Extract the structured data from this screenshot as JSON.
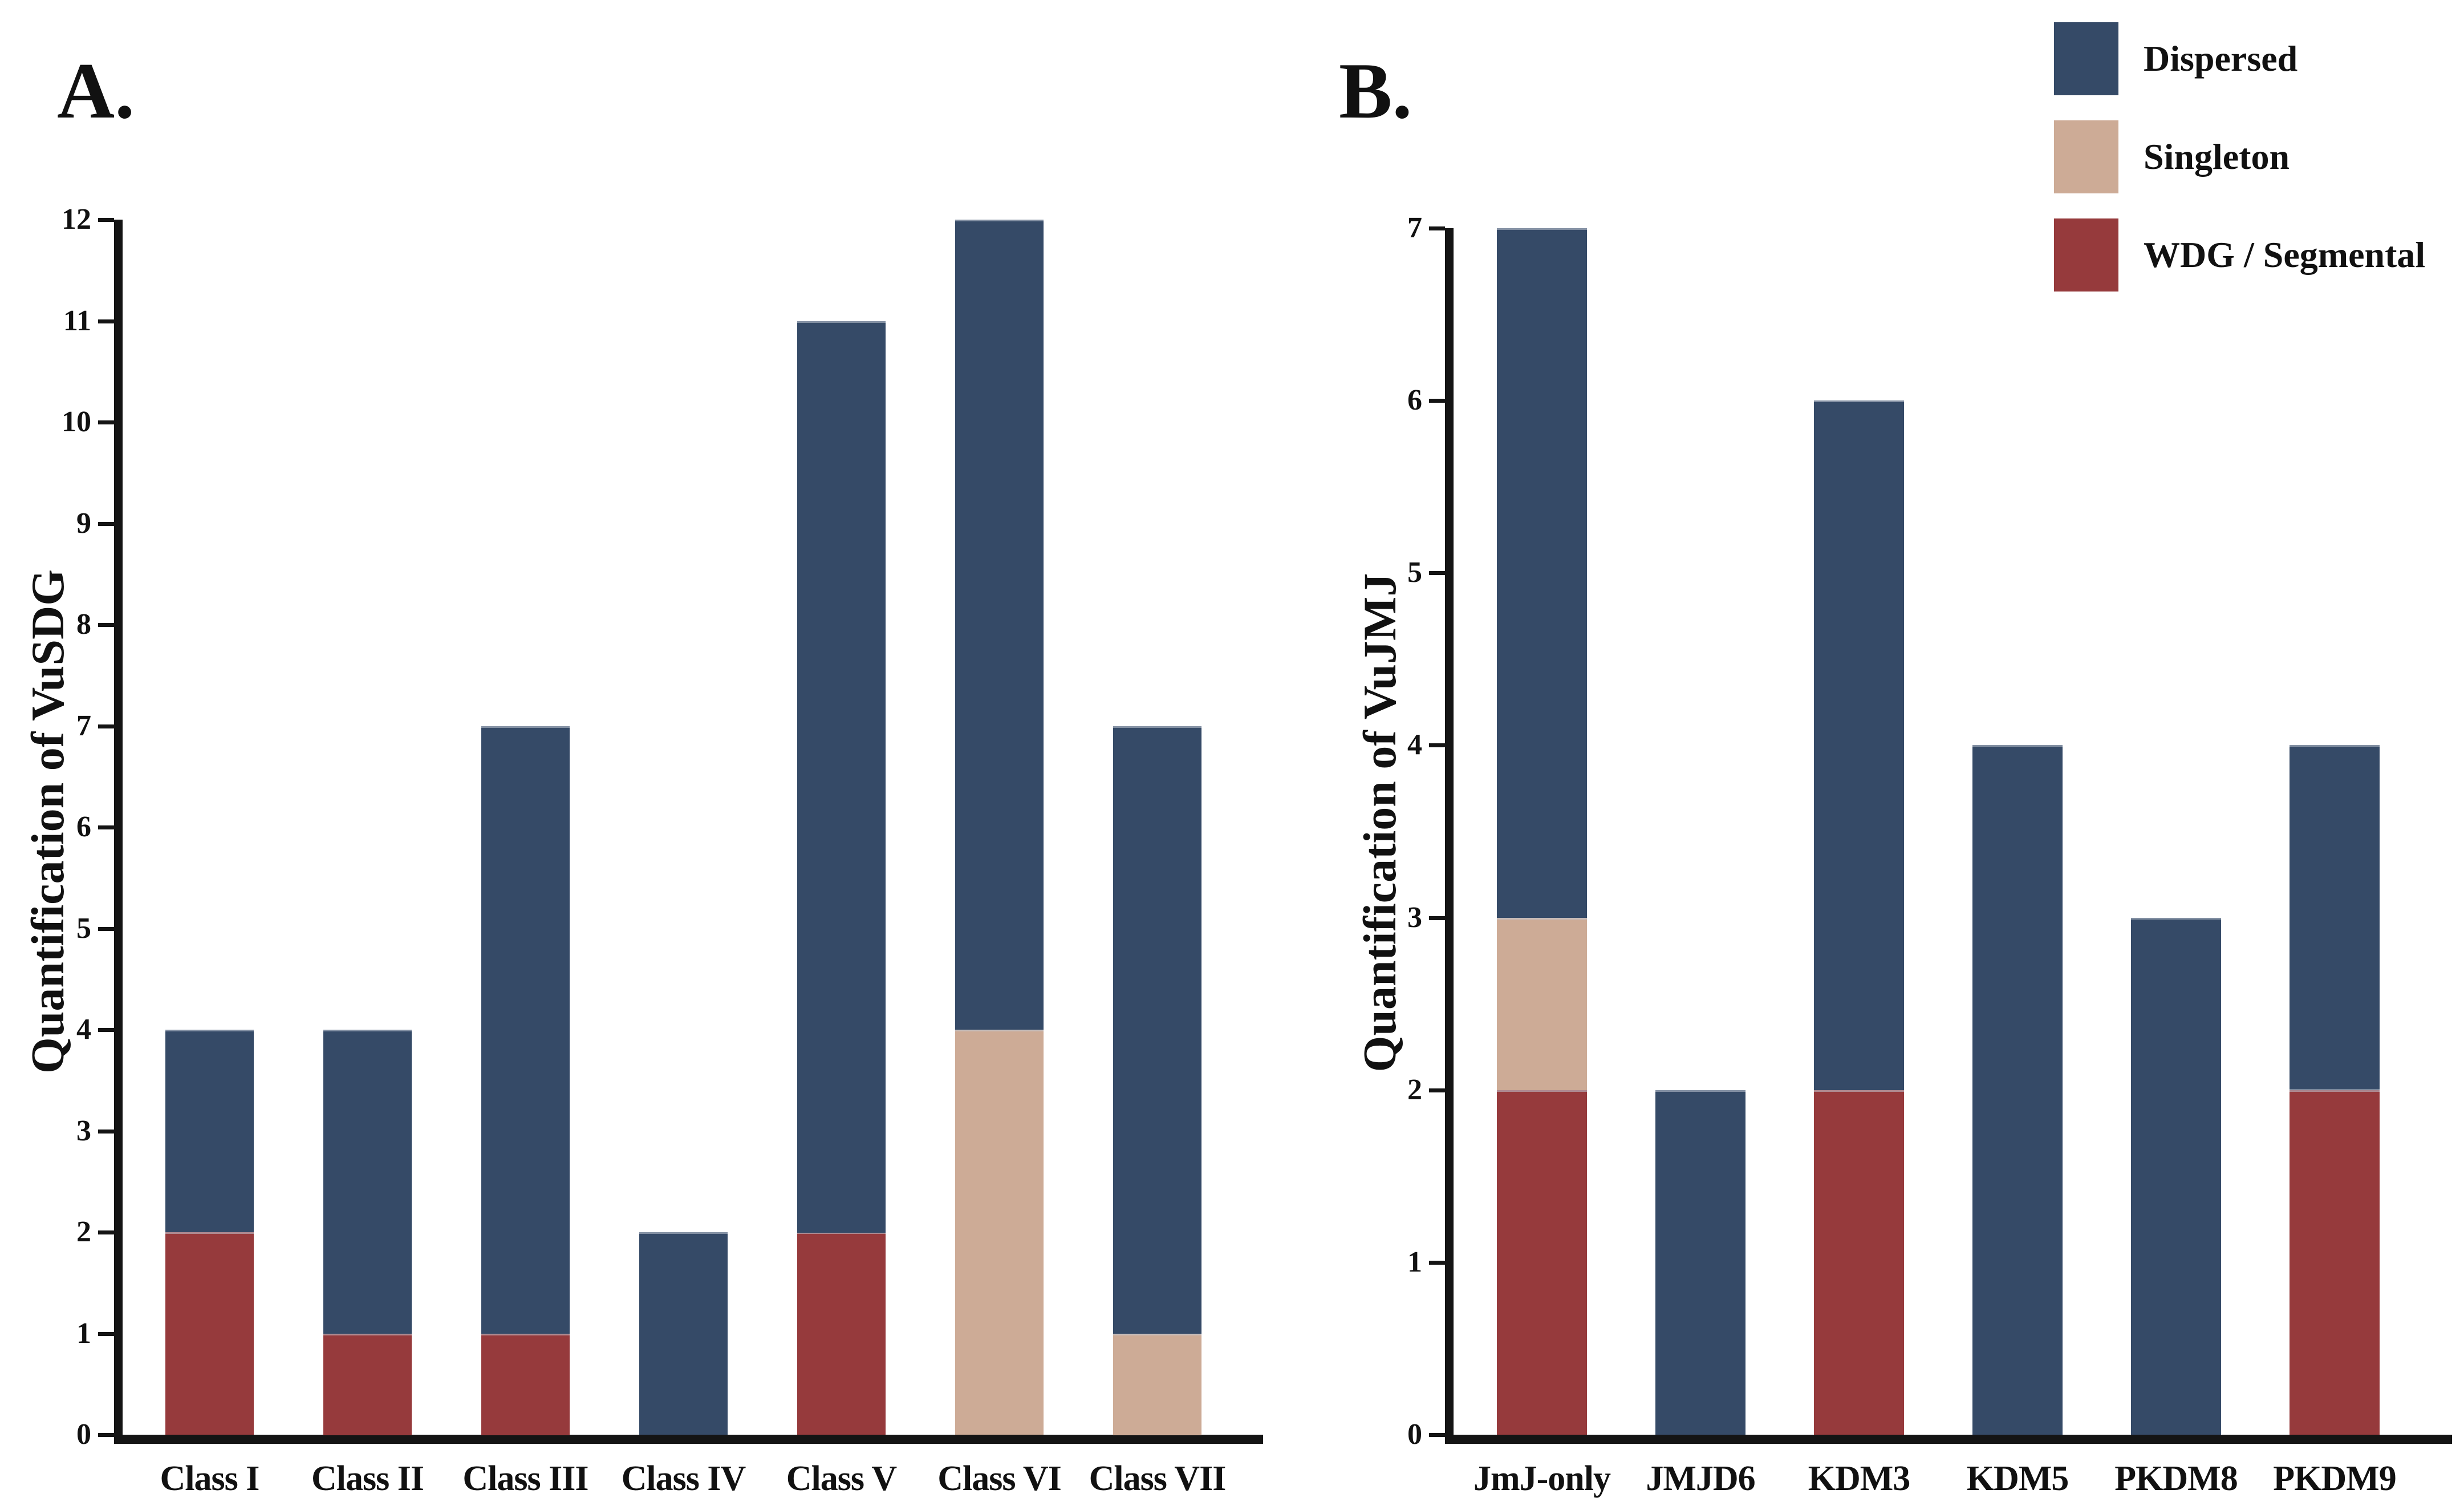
{
  "figure_type": "two-panel stacked bar figure",
  "legend": {
    "entries": [
      {
        "label": "Dispersed",
        "color": "#354A67"
      },
      {
        "label": "Singleton",
        "color": "#CDAB96"
      },
      {
        "label": "WDG / Segmental",
        "color": "#963A3C"
      }
    ]
  },
  "colors": {
    "dispersed": "#354A67",
    "singleton": "#CDAB96",
    "wdg_segmental": "#963A3C",
    "axis": "#141414",
    "background": "#FFFFFF"
  },
  "chart_data": [
    {
      "type": "bar",
      "stacked": true,
      "panel_label": "A.",
      "title": "",
      "xlabel": "",
      "ylabel": "Quantification of VuSDG",
      "ylim": [
        0,
        12
      ],
      "ytick_interval": 1,
      "ytick_labels": [
        "0",
        "1",
        "2",
        "3",
        "4",
        "5",
        "6",
        "7",
        "8",
        "9",
        "10",
        "11",
        "12"
      ],
      "grid": false,
      "categories": [
        "Class I",
        "Class II",
        "Class III",
        "Class IV",
        "Class V",
        "Class VI",
        "Class VII"
      ],
      "series": [
        {
          "name": "WDG / Segmental",
          "color": "#963A3C",
          "values": [
            2,
            1,
            1,
            0,
            2,
            0,
            0
          ]
        },
        {
          "name": "Singleton",
          "color": "#CDAB96",
          "values": [
            0,
            0,
            0,
            0,
            0,
            4,
            1
          ]
        },
        {
          "name": "Dispersed",
          "color": "#354A67",
          "values": [
            2,
            3,
            6,
            2,
            9,
            8,
            6
          ]
        }
      ],
      "totals": [
        4,
        4,
        7,
        2,
        11,
        12,
        7
      ]
    },
    {
      "type": "bar",
      "stacked": true,
      "panel_label": "B.",
      "title": "",
      "xlabel": "",
      "ylabel": "Quantification of VuJMJ",
      "ylim": [
        0,
        7
      ],
      "ytick_interval": 1,
      "ytick_labels": [
        "0",
        "1",
        "2",
        "3",
        "4",
        "5",
        "6",
        "7"
      ],
      "grid": false,
      "categories": [
        "JmJ-only",
        "JMJD6",
        "KDM3",
        "KDM5",
        "PKDM8",
        "PKDM9"
      ],
      "series": [
        {
          "name": "WDG / Segmental",
          "color": "#963A3C",
          "values": [
            2,
            0,
            2,
            0,
            0,
            2
          ]
        },
        {
          "name": "Singleton",
          "color": "#CDAB96",
          "values": [
            1,
            0,
            0,
            0,
            0,
            0
          ]
        },
        {
          "name": "Dispersed",
          "color": "#354A67",
          "values": [
            4,
            2,
            4,
            4,
            3,
            2
          ]
        }
      ],
      "totals": [
        7,
        2,
        6,
        4,
        3,
        4
      ]
    }
  ],
  "legend_position": "top-right"
}
